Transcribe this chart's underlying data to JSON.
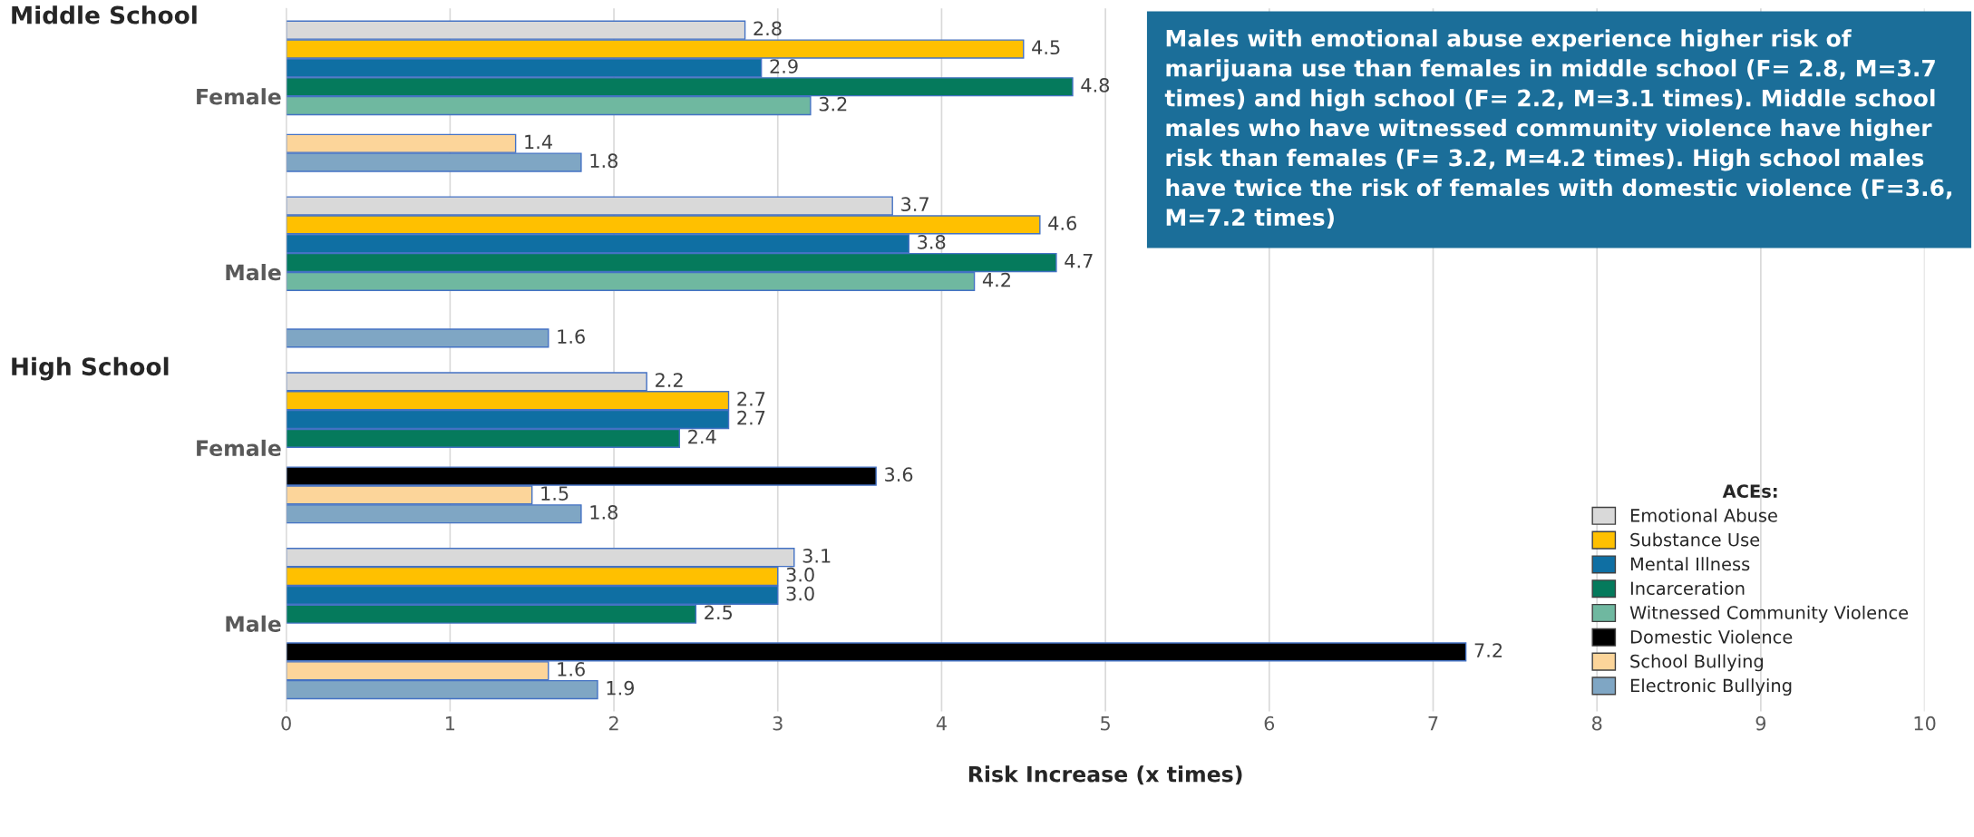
{
  "chart_data": {
    "type": "bar",
    "orientation": "horizontal",
    "categories": [
      "Female",
      "Male",
      "Female",
      "Male"
    ],
    "series": [
      {
        "name": "Emotional Abuse",
        "color": "#d9d9d9",
        "values": [
          2.8,
          3.7,
          2.2,
          3.1
        ]
      },
      {
        "name": "Substance Use",
        "color": "#ffc000",
        "values": [
          4.5,
          4.6,
          2.7,
          3.0
        ],
        "value_labels": [
          "4.5",
          "4.6",
          "2.7",
          "3.0"
        ]
      },
      {
        "name": "Mental Illness",
        "color": "#0f6fa3",
        "values": [
          2.9,
          3.8,
          2.7,
          3.0
        ],
        "value_labels": [
          "2.9",
          "3.8",
          "2.7",
          "3.0"
        ]
      },
      {
        "name": "Incarceration",
        "color": "#057a5c",
        "values": [
          4.8,
          4.7,
          2.4,
          2.5
        ]
      },
      {
        "name": "Witnessed Community Violence",
        "color": "#6fb8a0",
        "values": [
          3.2,
          4.2,
          null,
          null
        ]
      },
      {
        "name": "Domestic Violence",
        "color": "#000000",
        "values": [
          null,
          null,
          3.6,
          7.2
        ]
      },
      {
        "name": "School Bullying",
        "color": "#fcd59a",
        "values": [
          1.4,
          null,
          1.5,
          1.6
        ]
      },
      {
        "name": "Electronic Bullying",
        "color": "#7fa6c4",
        "values": [
          1.8,
          1.6,
          1.8,
          1.9
        ]
      }
    ],
    "xlim": [
      0,
      10
    ],
    "xticks": [
      0,
      1,
      2,
      3,
      4,
      5,
      6,
      7,
      8,
      9,
      10
    ],
    "xlabel": "Risk Increase (x times)",
    "legend_title": "ACEs:",
    "legend": "bottom right",
    "grid": "x",
    "data_labels": true,
    "annotations": [
      "Middle School",
      "High School",
      "Males with emotional abuse experience higher risk of marijuana use than females in middle school (F= 2.8, M=3.7 times) and high school (F= 2.2, M=3.1 times). Middle school males who have witnessed community violence have higher risk than females (F= 3.2, M=4.2 times). High school males have twice the risk of females with domestic violence (F=3.6, M=7.2 times)"
    ]
  }
}
